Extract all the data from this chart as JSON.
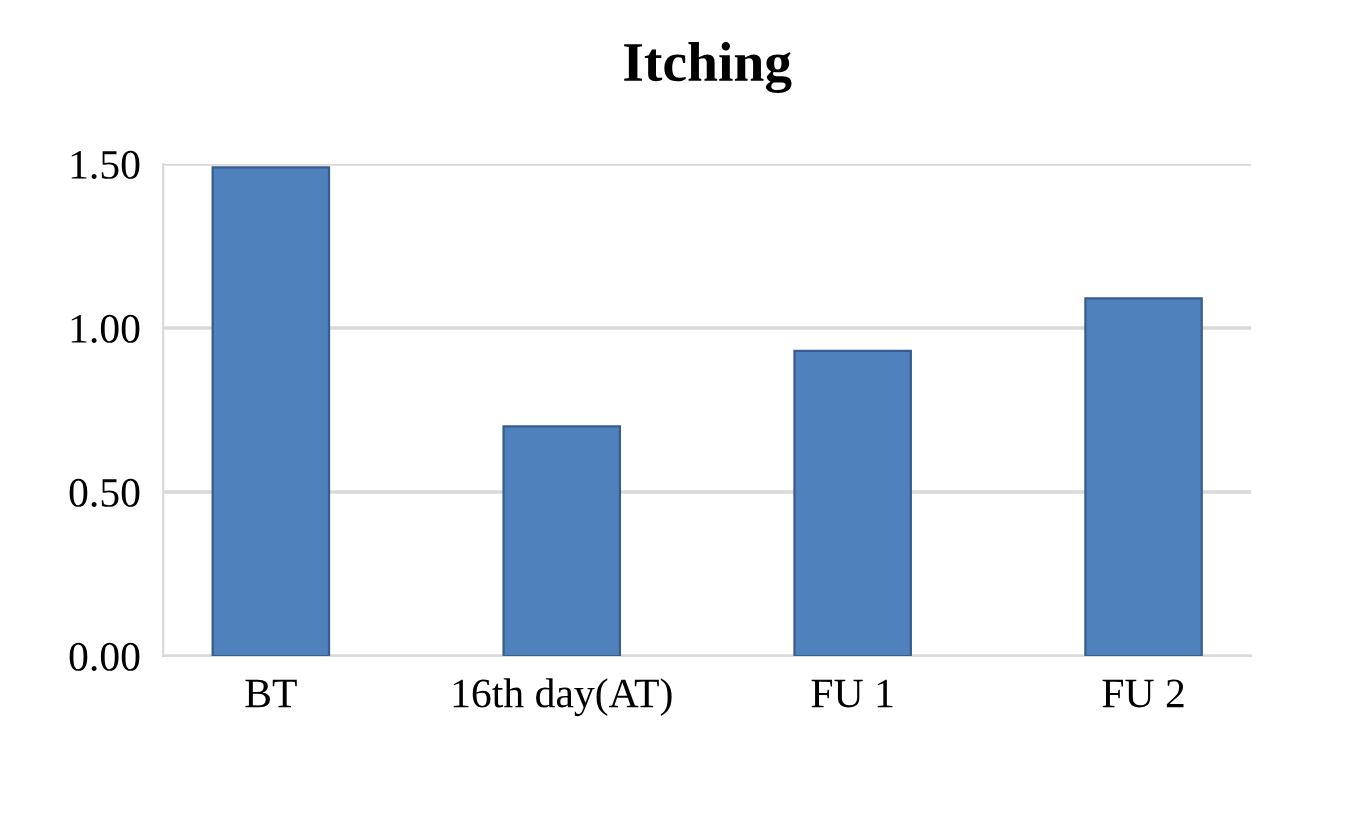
{
  "chart_data": {
    "type": "bar",
    "title": "Itching",
    "categories": [
      "BT",
      "16th day(AT)",
      "FU 1",
      "FU 2"
    ],
    "series": [
      {
        "color": "#4f81bd",
        "values": [
          1.49,
          0.7,
          0.93,
          1.09
        ]
      }
    ],
    "ylim": [
      0,
      1.5
    ],
    "yticks": [
      {
        "value": 0,
        "label": "0.00"
      },
      {
        "value": 0.5,
        "label": "0.50"
      },
      {
        "value": 1,
        "label": "1.00"
      },
      {
        "value": 1.5,
        "label": "1.50"
      }
    ],
    "grid": "y",
    "legend": false
  }
}
